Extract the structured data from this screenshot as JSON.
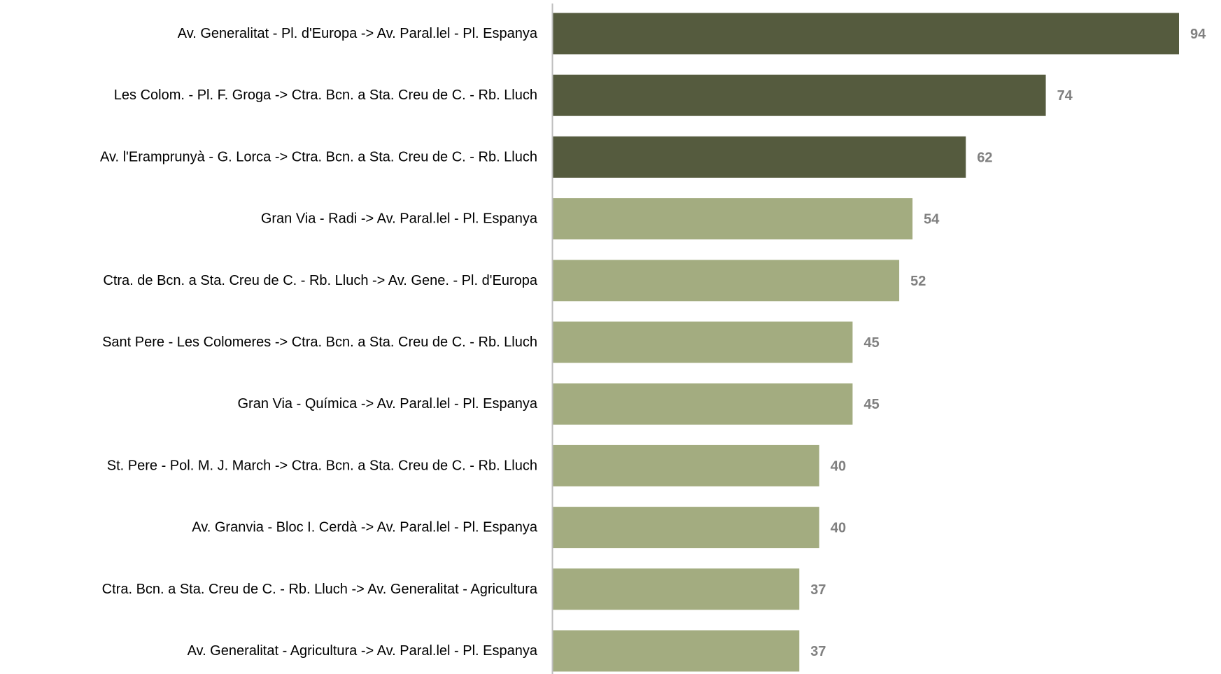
{
  "chart_data": {
    "type": "bar",
    "orientation": "horizontal",
    "categories": [
      "Av. Generalitat - Pl. d'Europa -> Av. Paral.lel - Pl. Espanya",
      "Les Colom. - Pl. F. Groga -> Ctra. Bcn. a Sta. Creu de C. - Rb. Lluch",
      "Av. l'Eramprunyà - G. Lorca -> Ctra. Bcn. a Sta. Creu de C. - Rb. Lluch",
      "Gran Via - Radi -> Av. Paral.lel - Pl. Espanya",
      "Ctra. de Bcn. a Sta. Creu de C. - Rb. Lluch -> Av. Gene. - Pl. d'Europa",
      "Sant Pere - Les Colomeres -> Ctra. Bcn. a Sta. Creu de C. - Rb. Lluch",
      "Gran Via - Química -> Av. Paral.lel - Pl. Espanya",
      "St. Pere - Pol. M. J. March -> Ctra. Bcn. a Sta. Creu de C. - Rb. Lluch",
      "Av. Granvia - Bloc I. Cerdà -> Av. Paral.lel - Pl. Espanya",
      "Ctra. Bcn. a Sta. Creu de C. - Rb. Lluch -> Av. Generalitat - Agricultura",
      "Av. Generalitat - Agricultura -> Av. Paral.lel - Pl. Espanya"
    ],
    "values": [
      94,
      74,
      62,
      54,
      52,
      45,
      45,
      40,
      40,
      37,
      37
    ],
    "highlighted": [
      true,
      true,
      true,
      false,
      false,
      false,
      false,
      false,
      false,
      false,
      false
    ],
    "colors": {
      "highlight": "#555b3e",
      "default": "#a3ac80",
      "value_label": "#808080",
      "axis": "#bfbfbf"
    },
    "title": "",
    "xlabel": "",
    "ylabel": "",
    "xlim": [
      0,
      94
    ],
    "grid": false,
    "legend": "none",
    "data_labels": true
  }
}
